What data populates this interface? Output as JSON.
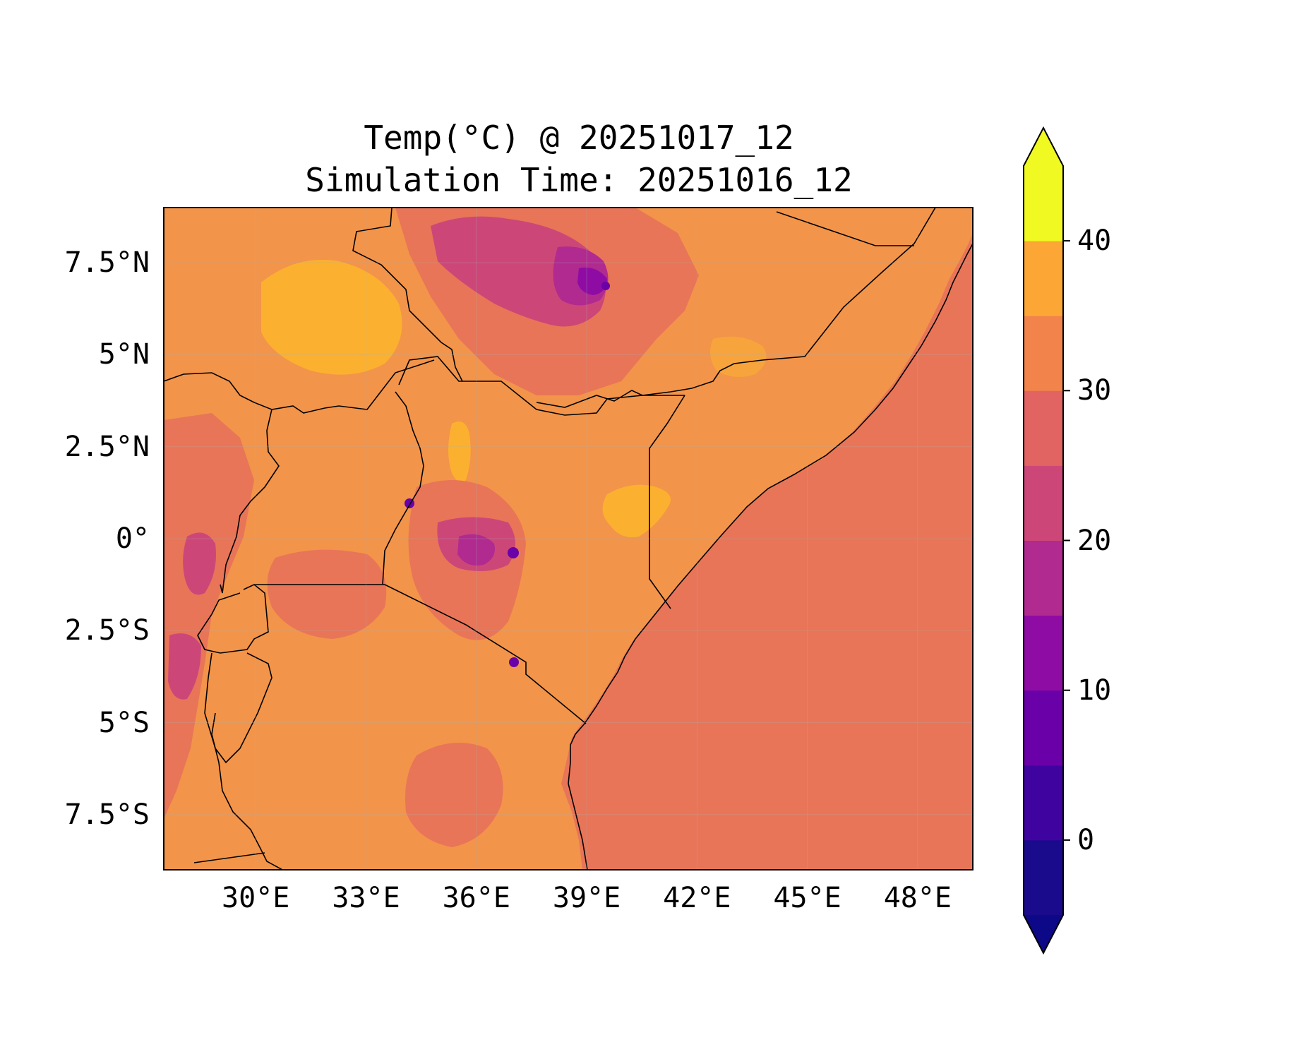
{
  "title": {
    "line1": "Temp(°C) @ 20251017_12",
    "line2": "Simulation Time: 20251016_12"
  },
  "map": {
    "region": "East Africa",
    "lon_range": [
      27.5,
      49.5
    ],
    "lat_range": [
      -9,
      9
    ],
    "lat_ticks": [
      {
        "value": 7.5,
        "label": "7.5°N"
      },
      {
        "value": 5,
        "label": "5°N"
      },
      {
        "value": 2.5,
        "label": "2.5°N"
      },
      {
        "value": 0,
        "label": "0°"
      },
      {
        "value": -2.5,
        "label": "2.5°S"
      },
      {
        "value": -5,
        "label": "5°S"
      },
      {
        "value": -7.5,
        "label": "7.5°S"
      }
    ],
    "lon_ticks": [
      {
        "value": 30,
        "label": "30°E"
      },
      {
        "value": 33,
        "label": "33°E"
      },
      {
        "value": 36,
        "label": "36°E"
      },
      {
        "value": 39,
        "label": "39°E"
      },
      {
        "value": 42,
        "label": "42°E"
      },
      {
        "value": 45,
        "label": "45°E"
      },
      {
        "value": 48,
        "label": "48°E"
      }
    ],
    "gridlines": true,
    "ocean_temp_band": [
      25,
      30
    ]
  },
  "colorbar": {
    "orientation": "vertical",
    "extend": "both",
    "levels": [
      -5,
      0,
      5,
      10,
      15,
      20,
      25,
      30,
      35,
      40,
      45
    ],
    "colors": [
      "#1a0a8c",
      "#3f03a0",
      "#6a00a8",
      "#8e0ca4",
      "#b02a90",
      "#cc4778",
      "#e16462",
      "#f2844b",
      "#fca636",
      "#f0f921"
    ],
    "under_color": "#0d0887",
    "over_color": "#f0f921",
    "ticks": [
      {
        "value": 0,
        "label": "0"
      },
      {
        "value": 10,
        "label": "10"
      },
      {
        "value": 20,
        "label": "20"
      },
      {
        "value": 30,
        "label": "30"
      },
      {
        "value": 40,
        "label": "40"
      }
    ]
  }
}
